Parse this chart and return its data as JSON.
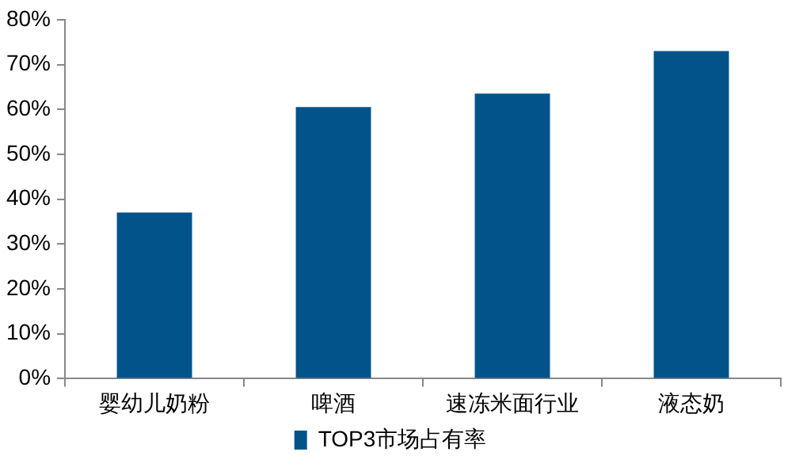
{
  "chart_data": {
    "type": "bar",
    "categories": [
      "婴幼儿奶粉",
      "啤酒",
      "速冻米面行业",
      "液态奶"
    ],
    "series": [
      {
        "name": "TOP3市场占有率",
        "color": "#02538a",
        "values": [
          37,
          60.5,
          63.5,
          73
        ]
      }
    ],
    "ylim": [
      0,
      80
    ],
    "yticks": [
      {
        "value": 0,
        "label": "0%"
      },
      {
        "value": 10,
        "label": "10%"
      },
      {
        "value": 20,
        "label": "20%"
      },
      {
        "value": 30,
        "label": "30%"
      },
      {
        "value": 40,
        "label": "40%"
      },
      {
        "value": 50,
        "label": "50%"
      },
      {
        "value": 60,
        "label": "60%"
      },
      {
        "value": 70,
        "label": "70%"
      },
      {
        "value": 80,
        "label": "80%"
      }
    ],
    "grid": false,
    "legend": "bottom"
  }
}
